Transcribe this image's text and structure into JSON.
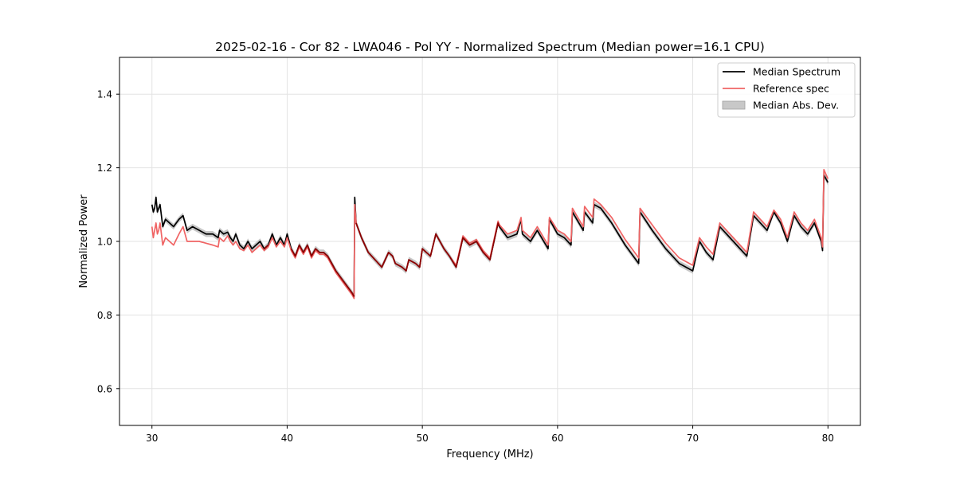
{
  "chart_data": {
    "type": "line",
    "title": "2025-02-16 - Cor 82 - LWA046 - Pol YY - Normalized Spectrum (Median power=16.1 CPU)",
    "xlabel": "Frequency (MHz)",
    "ylabel": "Normalized Power",
    "xlim": [
      27.6,
      82.4
    ],
    "ylim": [
      0.5,
      1.5
    ],
    "xticks": [
      30,
      40,
      50,
      60,
      70,
      80
    ],
    "yticks": [
      0.6,
      0.8,
      1.0,
      1.2,
      1.4
    ],
    "xtick_labels": [
      "30",
      "40",
      "50",
      "60",
      "70",
      "80"
    ],
    "ytick_labels": [
      "0.6",
      "0.8",
      "1.0",
      "1.2",
      "1.4"
    ],
    "grid": true,
    "legend_position": "top-right",
    "legend": [
      "Median Spectrum",
      "Reference spec",
      "Median Abs. Dev."
    ],
    "colors": {
      "median": "#000000",
      "reference": "#f06464",
      "overlap": "#8b0000",
      "mad_fill": "#b0b0b0",
      "grid": "#e3e3e3"
    },
    "series": [
      {
        "name": "Median Spectrum",
        "x": [
          30.0,
          30.1,
          30.2,
          30.3,
          30.4,
          30.5,
          30.6,
          30.8,
          31.0,
          31.3,
          31.6,
          32.0,
          32.3,
          32.6,
          33.0,
          33.5,
          34.0,
          34.5,
          34.9,
          35.0,
          35.3,
          35.6,
          35.8,
          36.0,
          36.2,
          36.5,
          36.8,
          37.1,
          37.4,
          37.7,
          38.0,
          38.3,
          38.6,
          38.9,
          39.2,
          39.5,
          39.8,
          40.0,
          40.3,
          40.6,
          40.9,
          41.2,
          41.5,
          41.8,
          42.1,
          42.4,
          42.7,
          43.0,
          43.3,
          43.6,
          44.0,
          44.4,
          44.8,
          44.95,
          45.0,
          45.1,
          45.5,
          46.0,
          46.5,
          47.0,
          47.5,
          47.8,
          48.0,
          48.5,
          48.8,
          49.0,
          49.5,
          49.8,
          50.0,
          50.3,
          50.6,
          51.0,
          51.3,
          51.6,
          52.0,
          52.5,
          53.0,
          53.5,
          54.0,
          54.5,
          55.0,
          55.6,
          55.7,
          56.3,
          57.0,
          57.3,
          57.4,
          58.0,
          58.5,
          59.3,
          59.4,
          60.0,
          60.5,
          61.0,
          61.1,
          61.9,
          62.0,
          62.6,
          62.7,
          63.2,
          64.0,
          65.0,
          66.0,
          66.1,
          67.0,
          68.0,
          68.5,
          69.0,
          69.5,
          70.0,
          70.5,
          71.0,
          71.5,
          72.0,
          72.5,
          73.0,
          73.5,
          74.0,
          74.5,
          75.0,
          75.5,
          76.0,
          76.5,
          77.0,
          77.5,
          78.0,
          78.5,
          79.0,
          79.5,
          79.6,
          79.7,
          80.0
        ],
        "values": [
          1.1,
          1.08,
          1.09,
          1.12,
          1.08,
          1.09,
          1.1,
          1.04,
          1.06,
          1.05,
          1.04,
          1.06,
          1.07,
          1.03,
          1.04,
          1.03,
          1.02,
          1.02,
          1.01,
          1.03,
          1.02,
          1.025,
          1.01,
          1.0,
          1.02,
          0.99,
          0.98,
          1.0,
          0.98,
          0.99,
          1.0,
          0.98,
          0.99,
          1.02,
          0.99,
          1.01,
          0.99,
          1.02,
          0.98,
          0.96,
          0.99,
          0.97,
          0.99,
          0.96,
          0.98,
          0.97,
          0.97,
          0.96,
          0.94,
          0.92,
          0.9,
          0.88,
          0.86,
          0.85,
          1.12,
          1.05,
          1.01,
          0.97,
          0.95,
          0.93,
          0.97,
          0.96,
          0.94,
          0.93,
          0.92,
          0.95,
          0.94,
          0.93,
          0.98,
          0.97,
          0.96,
          1.02,
          1.0,
          0.98,
          0.96,
          0.93,
          1.01,
          0.99,
          1.0,
          0.97,
          0.95,
          1.05,
          1.04,
          1.01,
          1.02,
          1.06,
          1.02,
          1.0,
          1.03,
          0.98,
          1.06,
          1.02,
          1.01,
          0.99,
          1.08,
          1.03,
          1.08,
          1.05,
          1.1,
          1.09,
          1.05,
          0.99,
          0.94,
          1.08,
          1.03,
          0.98,
          0.96,
          0.94,
          0.93,
          0.92,
          1.0,
          0.97,
          0.95,
          1.04,
          1.02,
          1.0,
          0.98,
          0.96,
          1.07,
          1.05,
          1.03,
          1.08,
          1.05,
          1.0,
          1.07,
          1.04,
          1.02,
          1.05,
          1.0,
          0.975,
          1.18,
          1.16
        ]
      },
      {
        "name": "Reference spec",
        "x": [
          30.0,
          30.1,
          30.2,
          30.3,
          30.4,
          30.5,
          30.6,
          30.8,
          31.0,
          31.3,
          31.6,
          32.0,
          32.3,
          32.6,
          33.0,
          33.5,
          34.0,
          34.5,
          34.9,
          35.0,
          35.3,
          35.6,
          35.8,
          36.0,
          36.2,
          36.5,
          36.8,
          37.1,
          37.4,
          37.7,
          38.0,
          38.3,
          38.6,
          38.9,
          39.2,
          39.5,
          39.8,
          40.0,
          40.3,
          40.6,
          40.9,
          41.2,
          41.5,
          41.8,
          42.1,
          42.4,
          42.7,
          43.0,
          43.3,
          43.6,
          44.0,
          44.4,
          44.8,
          44.95,
          45.0,
          45.1,
          45.5,
          46.0,
          46.5,
          47.0,
          47.5,
          47.8,
          48.0,
          48.5,
          48.8,
          49.0,
          49.5,
          49.8,
          50.0,
          50.3,
          50.6,
          51.0,
          51.3,
          51.6,
          52.0,
          52.5,
          53.0,
          53.5,
          54.0,
          54.5,
          55.0,
          55.6,
          55.7,
          56.3,
          57.0,
          57.3,
          57.4,
          58.0,
          58.5,
          59.3,
          59.4,
          60.0,
          60.5,
          61.0,
          61.1,
          61.9,
          62.0,
          62.6,
          62.7,
          63.2,
          64.0,
          65.0,
          66.0,
          66.1,
          67.0,
          68.0,
          68.5,
          69.0,
          69.5,
          70.0,
          70.5,
          71.0,
          71.5,
          72.0,
          72.5,
          73.0,
          73.5,
          74.0,
          74.5,
          75.0,
          75.5,
          76.0,
          76.5,
          77.0,
          77.5,
          78.0,
          78.5,
          79.0,
          79.5,
          79.6,
          79.7,
          80.0
        ],
        "values": [
          1.04,
          1.01,
          1.03,
          1.05,
          1.02,
          1.03,
          1.05,
          0.99,
          1.01,
          1.0,
          0.99,
          1.02,
          1.04,
          1.0,
          1.0,
          1.0,
          0.995,
          0.99,
          0.985,
          1.01,
          1.0,
          1.015,
          1.0,
          0.99,
          1.0,
          0.98,
          0.975,
          0.99,
          0.97,
          0.98,
          0.99,
          0.975,
          0.985,
          1.01,
          0.985,
          1.0,
          0.985,
          1.01,
          0.975,
          0.955,
          0.985,
          0.965,
          0.985,
          0.955,
          0.975,
          0.965,
          0.965,
          0.955,
          0.935,
          0.915,
          0.895,
          0.875,
          0.855,
          0.845,
          1.1,
          1.05,
          1.01,
          0.97,
          0.95,
          0.93,
          0.97,
          0.96,
          0.94,
          0.93,
          0.92,
          0.95,
          0.94,
          0.93,
          0.98,
          0.97,
          0.96,
          1.02,
          1.0,
          0.98,
          0.96,
          0.935,
          1.015,
          0.995,
          1.005,
          0.975,
          0.955,
          1.055,
          1.045,
          1.02,
          1.03,
          1.065,
          1.03,
          1.01,
          1.04,
          0.99,
          1.065,
          1.03,
          1.02,
          1.0,
          1.09,
          1.04,
          1.095,
          1.065,
          1.115,
          1.1,
          1.065,
          1.005,
          0.955,
          1.09,
          1.045,
          0.995,
          0.975,
          0.955,
          0.945,
          0.935,
          1.01,
          0.985,
          0.965,
          1.05,
          1.03,
          1.01,
          0.99,
          0.97,
          1.08,
          1.06,
          1.04,
          1.085,
          1.06,
          1.01,
          1.08,
          1.05,
          1.03,
          1.06,
          1.01,
          0.985,
          1.195,
          1.17
        ]
      }
    ],
    "mad_band_halfwidth": 0.008
  }
}
